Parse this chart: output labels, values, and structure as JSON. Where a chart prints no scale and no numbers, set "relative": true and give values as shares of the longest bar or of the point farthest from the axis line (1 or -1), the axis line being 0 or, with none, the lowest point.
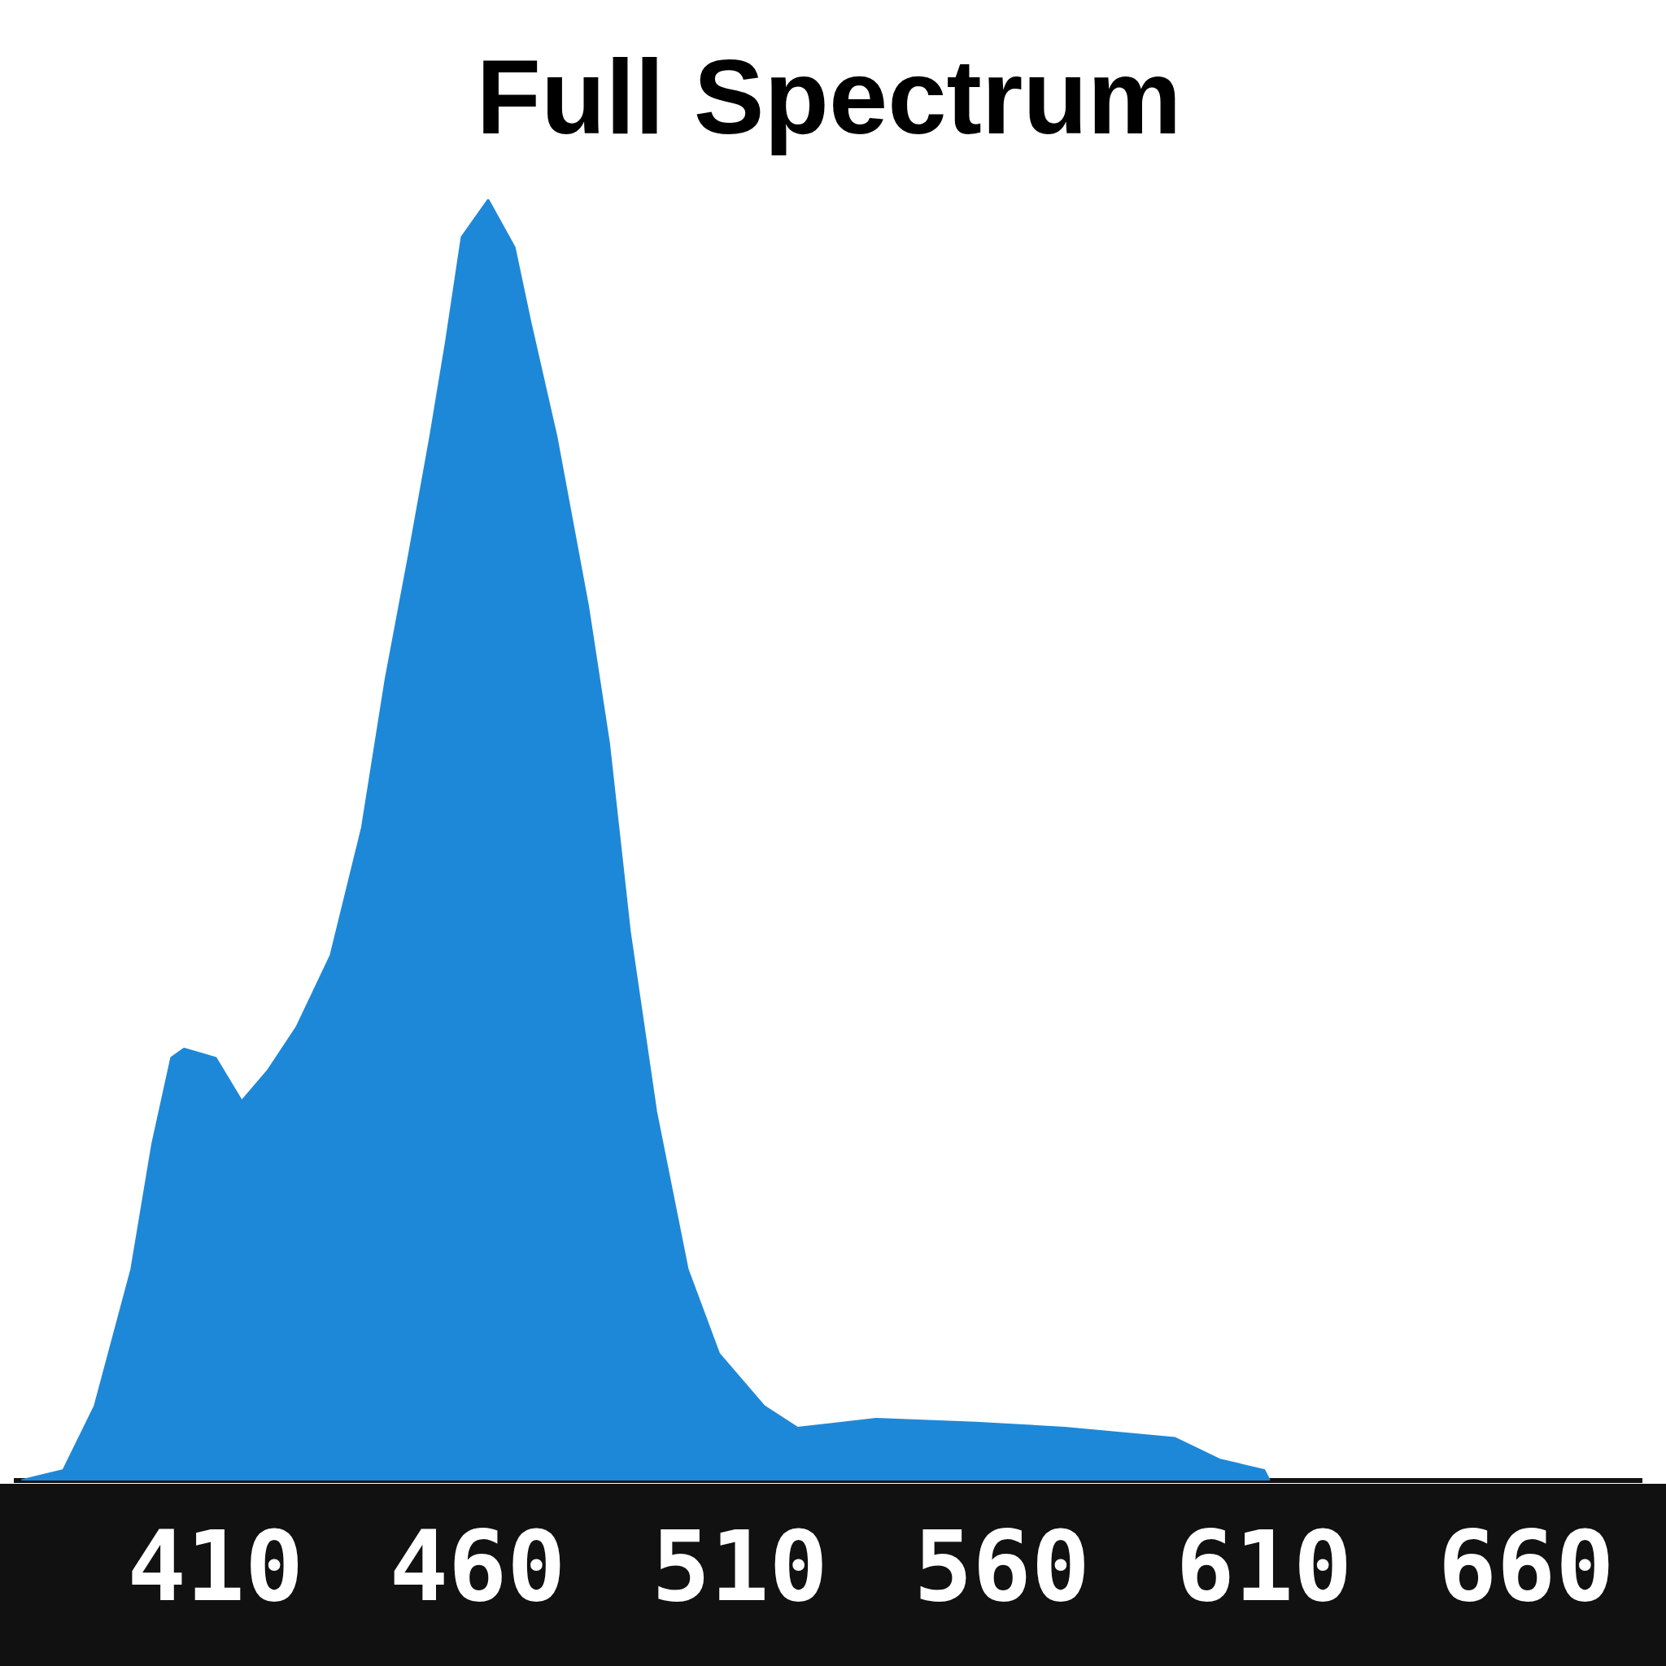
{
  "chart_data": {
    "type": "area",
    "title": "Full Spectrum",
    "relative": true,
    "color": "#1e88d8",
    "x": [
      373,
      381,
      387,
      394,
      398,
      401.6,
      404,
      410,
      415,
      420,
      425.5,
      432,
      438,
      442.5,
      447,
      451,
      454,
      457,
      462,
      467,
      470,
      475,
      481,
      485,
      489,
      494,
      500,
      506,
      514.6,
      521,
      536,
      555,
      572,
      593,
      601.6,
      610,
      611
    ],
    "values": [
      0,
      0.008,
      0.058,
      0.165,
      0.263,
      0.33,
      0.337,
      0.33,
      0.296,
      0.32,
      0.354,
      0.41,
      0.51,
      0.626,
      0.724,
      0.815,
      0.889,
      0.971,
      1,
      0.963,
      0.905,
      0.815,
      0.683,
      0.576,
      0.428,
      0.288,
      0.165,
      0.099,
      0.058,
      0.041,
      0.048,
      0.045,
      0.041,
      0.033,
      0.016,
      0.008,
      0
    ],
    "xlim": [
      372,
      682
    ],
    "xticks": [
      410,
      460,
      510,
      560,
      610,
      660
    ],
    "grid": false,
    "legend": false
  }
}
